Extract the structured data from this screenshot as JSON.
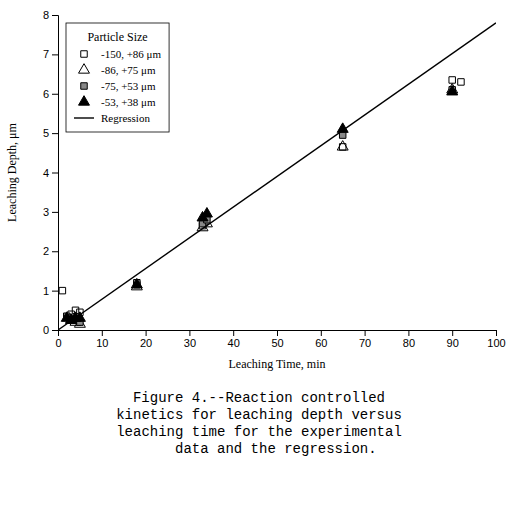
{
  "chart_data": {
    "type": "scatter",
    "xlabel": "Leaching Time, min",
    "ylabel": "Leaching Depth, μm",
    "xlim": [
      0,
      100
    ],
    "ylim": [
      0,
      8
    ],
    "xticks": [
      0,
      10,
      20,
      30,
      40,
      50,
      60,
      70,
      80,
      90,
      100
    ],
    "yticks": [
      0,
      1,
      2,
      3,
      4,
      5,
      6,
      7,
      8
    ],
    "grid": false,
    "legend": "upper left",
    "legend_title": "Particle Size",
    "series": [
      {
        "name": "-150, +86 μm",
        "marker": "square-open",
        "color": "black",
        "x": [
          1,
          3,
          4,
          5,
          18,
          33,
          33.5,
          65,
          90,
          92
        ],
        "values": [
          1.0,
          0.4,
          0.5,
          0.45,
          1.15,
          2.65,
          2.75,
          4.65,
          6.35,
          6.3
        ]
      },
      {
        "name": "-86, +75 μm",
        "marker": "triangle-open",
        "color": "black",
        "x": [
          3,
          4,
          5,
          18,
          33,
          34,
          65,
          90
        ],
        "values": [
          0.25,
          0.2,
          0.15,
          1.1,
          2.6,
          2.7,
          4.65,
          6.1
        ]
      },
      {
        "name": "-75, +53 μm",
        "marker": "square",
        "color": "#888888",
        "x": [
          2,
          3,
          4,
          5,
          18,
          33,
          34,
          65,
          90
        ],
        "values": [
          0.35,
          0.3,
          0.25,
          0.2,
          1.2,
          2.7,
          2.8,
          4.95,
          6.1
        ]
      },
      {
        "name": "-53, +38 μm",
        "marker": "triangle",
        "color": "black",
        "x": [
          2,
          3,
          4,
          5,
          18,
          33,
          34,
          65,
          90
        ],
        "values": [
          0.3,
          0.25,
          0.3,
          0.3,
          1.15,
          2.85,
          2.95,
          5.1,
          6.05
        ]
      },
      {
        "name": "Regression",
        "type": "line",
        "line_style": "solid",
        "color": "black",
        "x": [
          0,
          100
        ],
        "values": [
          0,
          7.8
        ]
      }
    ],
    "annotations": [
      "Figure 4.--Reaction controlled",
      "kinetics for leaching depth versus",
      "leaching time for the experimental",
      "    data and the regression."
    ]
  }
}
